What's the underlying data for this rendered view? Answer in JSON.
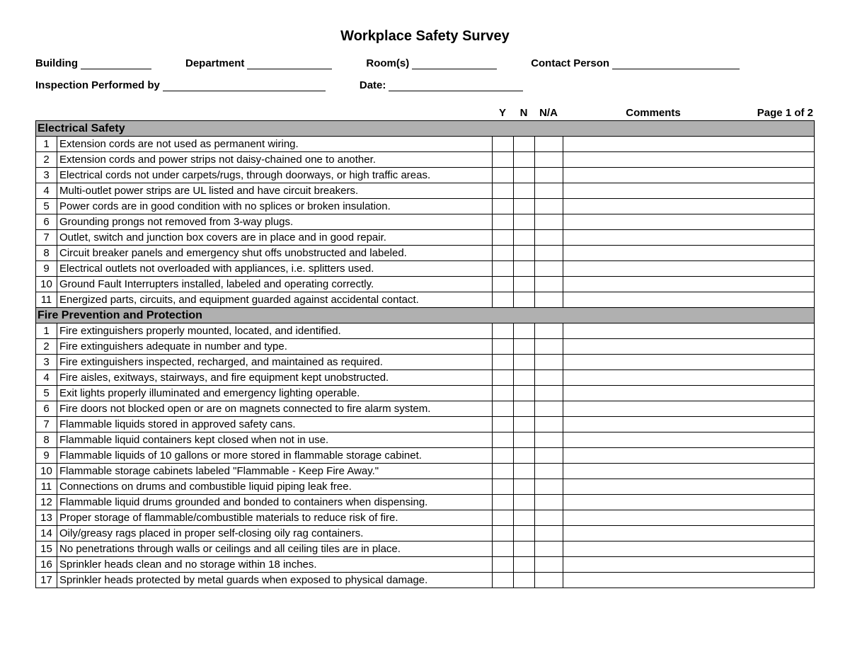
{
  "title": "Workplace Safety Survey",
  "header": {
    "building_label": "Building",
    "department_label": "Department",
    "rooms_label": "Room(s)",
    "contact_label": "Contact Person",
    "inspector_label": "Inspection Performed by",
    "date_label": "Date:"
  },
  "columns": {
    "y": "Y",
    "n": "N",
    "na": "N/A",
    "comments": "Comments",
    "page": "Page 1 of 2"
  },
  "sections": [
    {
      "title": "Electrical Safety",
      "items": [
        "Extension cords are not used as permanent wiring.",
        "Extension cords and power strips not daisy-chained one to another.",
        "Electrical cords not under carpets/rugs, through doorways, or  high traffic areas.",
        "Multi-outlet power strips are UL listed and have circuit breakers.",
        "Power cords are in good condition with no splices or broken insulation.",
        "Grounding prongs not removed from 3-way plugs.",
        "Outlet, switch and junction box covers are in place and in good repair.",
        "Circuit breaker panels and emergency shut offs unobstructed and labeled.",
        "Electrical outlets not overloaded with appliances, i.e. splitters used.",
        "Ground Fault Interrupters installed, labeled and operating correctly.",
        "Energized parts, circuits, and equipment guarded against accidental contact."
      ]
    },
    {
      "title": "Fire Prevention and Protection",
      "items": [
        "Fire extinguishers properly mounted, located, and identified.",
        "Fire extinguishers adequate in number and type.",
        "Fire extinguishers inspected, recharged, and maintained as required.",
        "Fire aisles, exitways, stairways, and fire equipment kept unobstructed.",
        "Exit lights properly illuminated and emergency lighting operable.",
        "Fire doors not blocked open or are on magnets connected to fire alarm system.",
        "Flammable liquids stored in approved safety cans.",
        "Flammable liquid containers kept closed when not in use.",
        "Flammable liquids of 10 gallons or more stored in flammable storage cabinet.",
        "Flammable storage cabinets labeled \"Flammable - Keep Fire Away.\"",
        "Connections on drums and combustible liquid piping leak free.",
        "Flammable liquid drums grounded and bonded to containers when dispensing.",
        "Proper storage of flammable/combustible materials to reduce risk of fire.",
        "Oily/greasy rags placed in proper self-closing oily rag containers.",
        "No penetrations through walls or ceilings and all ceiling tiles are in place.",
        "Sprinkler heads clean and no storage within 18 inches.",
        "Sprinkler heads protected by metal guards when exposed to physical damage."
      ]
    }
  ],
  "style": {
    "section_bg": "#b0b0b0",
    "border_color": "#000000",
    "text_color": "#000000",
    "background": "#ffffff"
  }
}
